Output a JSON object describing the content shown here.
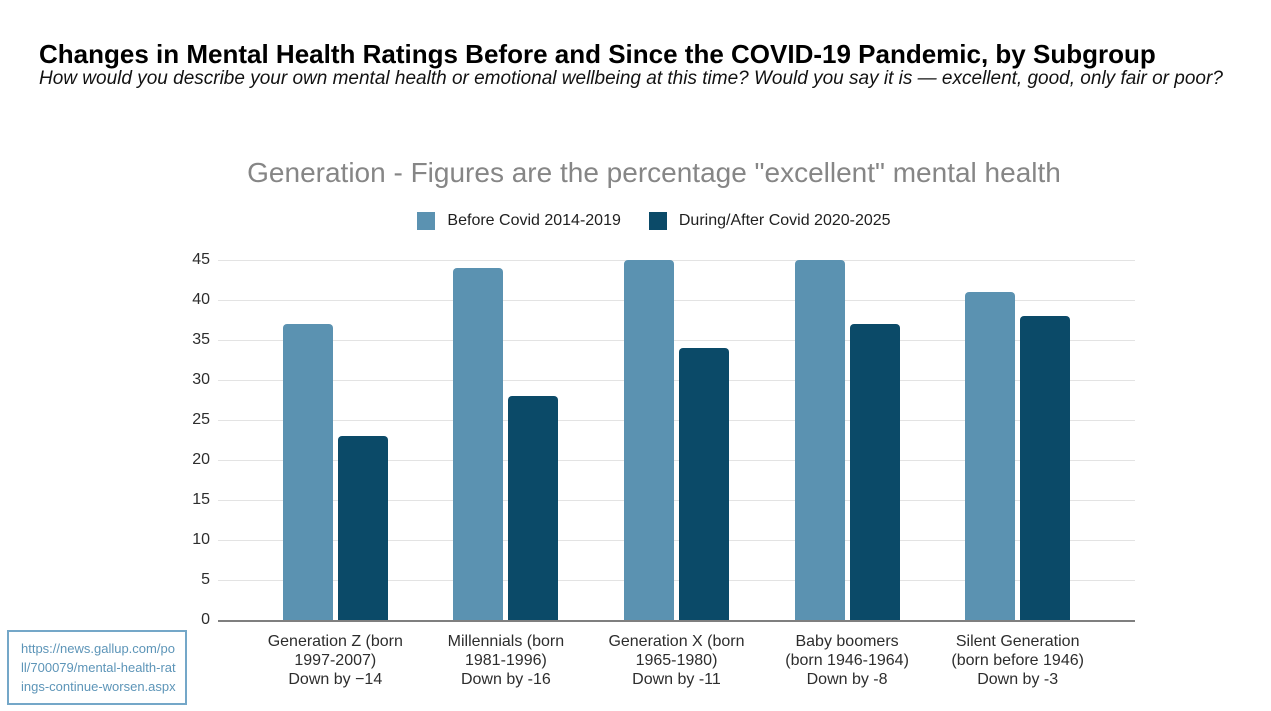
{
  "page": {
    "title": "Changes in Mental Health Ratings Before and Since the COVID-19 Pandemic, by Subgroup",
    "subtitle": "How would you describe your own mental health or emotional wellbeing at this time? Would you say it is — excellent, good, only fair or poor?"
  },
  "source_link": {
    "url": "https://news.gallup.com/poll/700079/mental-health-ratings-continue-worsen.aspx",
    "display_lines": [
      "https://news.gallup.com/po",
      "ll/700079/mental-health-rat",
      "ings-continue-worsen.aspx"
    ]
  },
  "chart_data": {
    "type": "bar",
    "title": "Generation - Figures are the percentage \"excellent\" mental health",
    "categories": [
      "Generation Z (born 1997-2007)",
      "Millennials (born 1981-1996)",
      "Generation X (born 1965-1980)",
      "Baby boomers (born 1946-1964)",
      "Silent Generation (born before 1946)"
    ],
    "category_label_lines": [
      [
        "Generation Z (born",
        "1997-2007)",
        "Down by −14"
      ],
      [
        "Millennials (born",
        "1981-1996)",
        "Down by -16"
      ],
      [
        "Generation X (born",
        "1965-1980)",
        "Down by -11"
      ],
      [
        "Baby boomers",
        "(born 1946-1964)",
        "Down by -8"
      ],
      [
        "Silent Generation",
        "(born before 1946)",
        "Down by -3"
      ]
    ],
    "deltas": [
      -14,
      -16,
      -11,
      -8,
      -3
    ],
    "series": [
      {
        "name": "Before Covid 2014-2019",
        "color": "#5b92b1",
        "values": [
          37,
          44,
          45,
          45,
          41
        ]
      },
      {
        "name": "During/After Covid 2020-2025",
        "color": "#0b4a68",
        "values": [
          23,
          28,
          34,
          37,
          38
        ]
      }
    ],
    "ylim": [
      0,
      45
    ],
    "yticks": [
      0,
      5,
      10,
      15,
      20,
      25,
      30,
      35,
      40,
      45
    ],
    "grid": true,
    "legend_position": "top",
    "colors": {
      "chart_title": "#868686",
      "axis_line": "#7f7f7f",
      "gridline": "#e3e3e3",
      "source_link": "#5d95b8"
    }
  }
}
